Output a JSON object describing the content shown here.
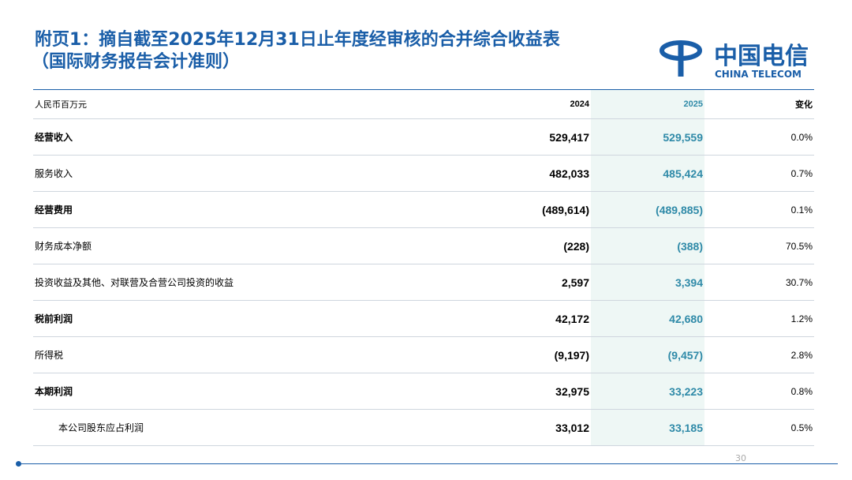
{
  "header": {
    "title_line1": "附页1：摘自截至2025年12月31日止年度经审核的合并综合收益表",
    "title_line2": "（国际财务报告会计准则）",
    "logo_cn": "中国电信",
    "logo_en": "CHINA TELECOM"
  },
  "table": {
    "columns": [
      "人民币百万元",
      "2024",
      "2025",
      "变化"
    ],
    "rows": [
      [
        "经营收入",
        "529,417",
        "529,559",
        "0.0%"
      ],
      [
        "服务收入",
        "482,033",
        "485,424",
        "0.7%"
      ],
      [
        "经营费用",
        "(489,614)",
        "(489,885)",
        "0.1%"
      ],
      [
        "财务成本净额",
        "(228)",
        "(388)",
        "70.5%"
      ],
      [
        "投资收益及其他、对联营及合营公司投资的收益",
        "2,597",
        "3,394",
        "30.7%"
      ],
      [
        "税前利润",
        "42,172",
        "42,680",
        "1.2%"
      ],
      [
        "所得税",
        "(9,197)",
        "(9,457)",
        "2.8%"
      ],
      [
        "本期利润",
        "32,975",
        "33,223",
        "0.8%"
      ],
      [
        "本公司股东应占利润",
        "33,012",
        "33,185",
        "0.5%"
      ]
    ]
  },
  "footer": {
    "page": "30"
  }
}
